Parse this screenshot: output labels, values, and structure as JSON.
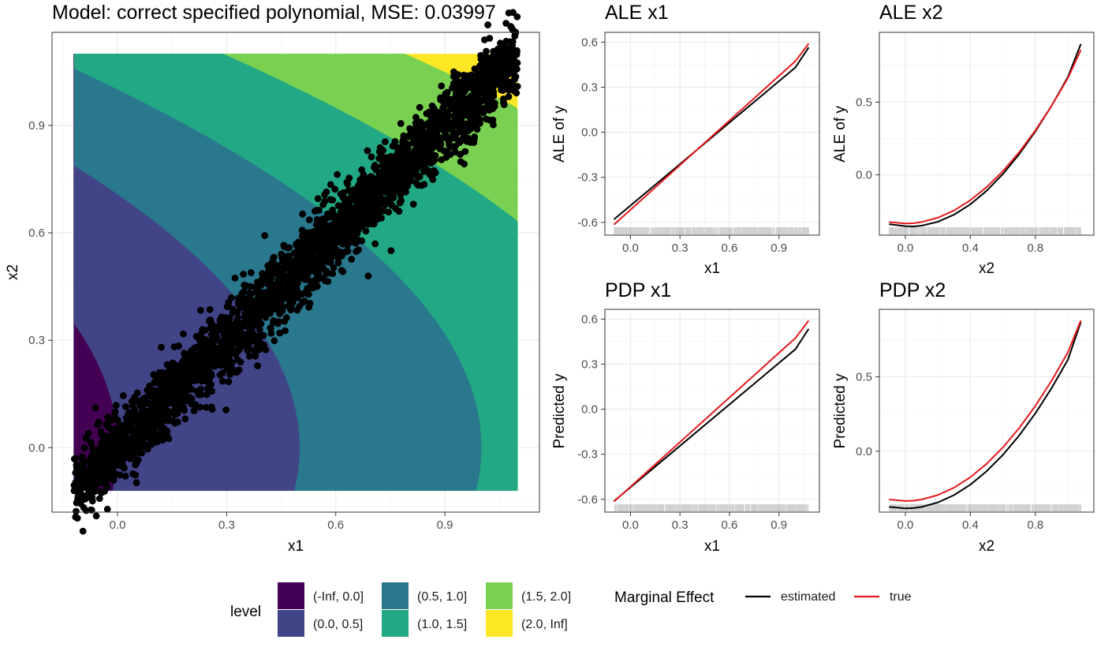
{
  "colors": {
    "levels": [
      "#440154",
      "#414487",
      "#2A788E",
      "#22A884",
      "#7AD151",
      "#FDE725"
    ],
    "estimated": "#000000",
    "true": "#E41A1C",
    "points": "#000000",
    "grid_major": "#ebebeb",
    "grid_minor": "#f5f5f5",
    "panel_border": "#333333",
    "rug": "#000000"
  },
  "chart_data": [
    {
      "id": "main",
      "type": "scatter",
      "subtype": "filled-contour with scatter overlay",
      "title": "Model: correct specified polynomial, MSE: 0.03997",
      "xlabel": "x1",
      "ylabel": "x2",
      "xlim": [
        -0.18,
        1.16
      ],
      "ylim": [
        -0.18,
        1.16
      ],
      "xticks": [
        0.0,
        0.3,
        0.6,
        0.9
      ],
      "xtick_labels": [
        "0.0",
        "0.3",
        "0.6",
        "0.9"
      ],
      "yticks": [
        0.0,
        0.3,
        0.6,
        0.9
      ],
      "ytick_labels": [
        "0.0",
        "0.3",
        "0.6",
        "0.9"
      ],
      "grid": true,
      "surface": "y = x1 + x2^2",
      "surface_extent": {
        "x": [
          -0.12,
          1.1
        ],
        "y": [
          -0.12,
          1.1
        ]
      },
      "level_breaks": [
        0.0,
        0.5,
        1.0,
        1.5,
        2.0
      ],
      "scatter": {
        "n_points": 3000,
        "relation": "x2 ≈ x1 + noise",
        "x_range": [
          -0.12,
          1.1
        ],
        "noise_sd": 0.05,
        "color": "#000000"
      }
    },
    {
      "id": "ale_x1",
      "type": "line",
      "title": "ALE x1",
      "xlabel": "x1",
      "ylabel": "ALE of y",
      "xlim": [
        -0.155,
        1.145
      ],
      "ylim": [
        -0.685,
        0.665
      ],
      "xticks": [
        0.0,
        0.3,
        0.6,
        0.9
      ],
      "xtick_labels": [
        "0.0",
        "0.3",
        "0.6",
        "0.9"
      ],
      "yticks": [
        -0.6,
        -0.3,
        0.0,
        0.3,
        0.6
      ],
      "ytick_labels": [
        "-0.6",
        "-0.3",
        "0.0",
        "0.3",
        "0.6"
      ],
      "grid": true,
      "rug": true,
      "series": [
        {
          "name": "estimated",
          "x": [
            -0.1,
            0.0,
            0.2,
            0.4,
            0.6,
            0.8,
            1.0,
            1.08
          ],
          "values": [
            -0.58,
            -0.488,
            -0.304,
            -0.12,
            0.064,
            0.248,
            0.432,
            0.565
          ]
        },
        {
          "name": "true",
          "x": [
            -0.1,
            0.0,
            0.2,
            0.4,
            0.6,
            0.8,
            1.0,
            1.08
          ],
          "values": [
            -0.615,
            -0.516,
            -0.318,
            -0.12,
            0.078,
            0.276,
            0.474,
            0.59
          ]
        }
      ]
    },
    {
      "id": "ale_x2",
      "type": "line",
      "title": "ALE x2",
      "xlabel": "x2",
      "ylabel": "ALE of y",
      "xlim": [
        -0.16,
        1.16
      ],
      "ylim": [
        -0.415,
        0.98
      ],
      "xticks": [
        0.0,
        0.4,
        0.8
      ],
      "xtick_labels": [
        "0.0",
        "0.4",
        "0.8"
      ],
      "yticks": [
        0.0,
        0.5
      ],
      "ytick_labels": [
        "0.0",
        "0.5"
      ],
      "grid": true,
      "rug": true,
      "series": [
        {
          "name": "estimated",
          "x": [
            -0.1,
            0.0,
            0.05,
            0.1,
            0.2,
            0.3,
            0.4,
            0.5,
            0.6,
            0.7,
            0.8,
            0.9,
            1.0,
            1.08
          ],
          "values": [
            -0.34,
            -0.353,
            -0.355,
            -0.35,
            -0.323,
            -0.274,
            -0.203,
            -0.11,
            0.005,
            0.141,
            0.298,
            0.475,
            0.673,
            0.9
          ]
        },
        {
          "name": "true",
          "x": [
            -0.1,
            0.0,
            0.05,
            0.1,
            0.2,
            0.3,
            0.4,
            0.5,
            0.6,
            0.7,
            0.8,
            0.9,
            1.0,
            1.08
          ],
          "values": [
            -0.325,
            -0.335,
            -0.333,
            -0.325,
            -0.295,
            -0.245,
            -0.175,
            -0.085,
            0.025,
            0.155,
            0.305,
            0.475,
            0.665,
            0.86
          ]
        }
      ]
    },
    {
      "id": "pdp_x1",
      "type": "line",
      "title": "PDP x1",
      "xlabel": "x1",
      "ylabel": "Predicted y",
      "xlim": [
        -0.155,
        1.145
      ],
      "ylim": [
        -0.685,
        0.665
      ],
      "xticks": [
        0.0,
        0.3,
        0.6,
        0.9
      ],
      "xtick_labels": [
        "0.0",
        "0.3",
        "0.6",
        "0.9"
      ],
      "yticks": [
        -0.6,
        -0.3,
        0.0,
        0.3,
        0.6
      ],
      "ytick_labels": [
        "-0.6",
        "-0.3",
        "0.0",
        "0.3",
        "0.6"
      ],
      "grid": true,
      "rug": true,
      "series": [
        {
          "name": "estimated",
          "x": [
            -0.1,
            0.0,
            0.2,
            0.4,
            0.6,
            0.8,
            1.0,
            1.08
          ],
          "values": [
            -0.612,
            -0.52,
            -0.336,
            -0.152,
            0.032,
            0.216,
            0.4,
            0.535
          ]
        },
        {
          "name": "true",
          "x": [
            -0.1,
            0.0,
            0.2,
            0.4,
            0.6,
            0.8,
            1.0,
            1.08
          ],
          "values": [
            -0.615,
            -0.516,
            -0.318,
            -0.12,
            0.078,
            0.276,
            0.474,
            0.59
          ]
        }
      ]
    },
    {
      "id": "pdp_x2",
      "type": "line",
      "title": "PDP x2",
      "xlabel": "x2",
      "ylabel": "Predicted y",
      "xlim": [
        -0.16,
        1.16
      ],
      "ylim": [
        -0.41,
        0.955
      ],
      "xticks": [
        0.0,
        0.4,
        0.8
      ],
      "xtick_labels": [
        "0.0",
        "0.4",
        "0.8"
      ],
      "yticks": [
        0.0,
        0.5
      ],
      "ytick_labels": [
        "0.0",
        "0.5"
      ],
      "grid": true,
      "rug": true,
      "series": [
        {
          "name": "estimated",
          "x": [
            -0.1,
            0.0,
            0.05,
            0.1,
            0.2,
            0.3,
            0.4,
            0.5,
            0.6,
            0.7,
            0.8,
            0.9,
            1.0,
            1.08
          ],
          "values": [
            -0.375,
            -0.385,
            -0.383,
            -0.375,
            -0.345,
            -0.295,
            -0.225,
            -0.135,
            -0.025,
            0.105,
            0.255,
            0.425,
            0.615,
            0.87
          ]
        },
        {
          "name": "true",
          "x": [
            -0.1,
            0.0,
            0.05,
            0.1,
            0.2,
            0.3,
            0.4,
            0.5,
            0.6,
            0.7,
            0.8,
            0.9,
            1.0,
            1.08
          ],
          "values": [
            -0.325,
            -0.335,
            -0.333,
            -0.325,
            -0.295,
            -0.245,
            -0.175,
            -0.085,
            0.025,
            0.155,
            0.305,
            0.475,
            0.665,
            0.88
          ]
        }
      ]
    }
  ],
  "legend": {
    "placement": "bottom",
    "level": {
      "title": "level",
      "items": [
        "(-Inf, 0.0]",
        "(0.0, 0.5]",
        "(0.5, 1.0]",
        "(1.0, 1.5]",
        "(1.5, 2.0]",
        "(2.0, Inf]"
      ]
    },
    "marginal": {
      "title": "Marginal Effect",
      "items": [
        "estimated",
        "true"
      ]
    }
  }
}
